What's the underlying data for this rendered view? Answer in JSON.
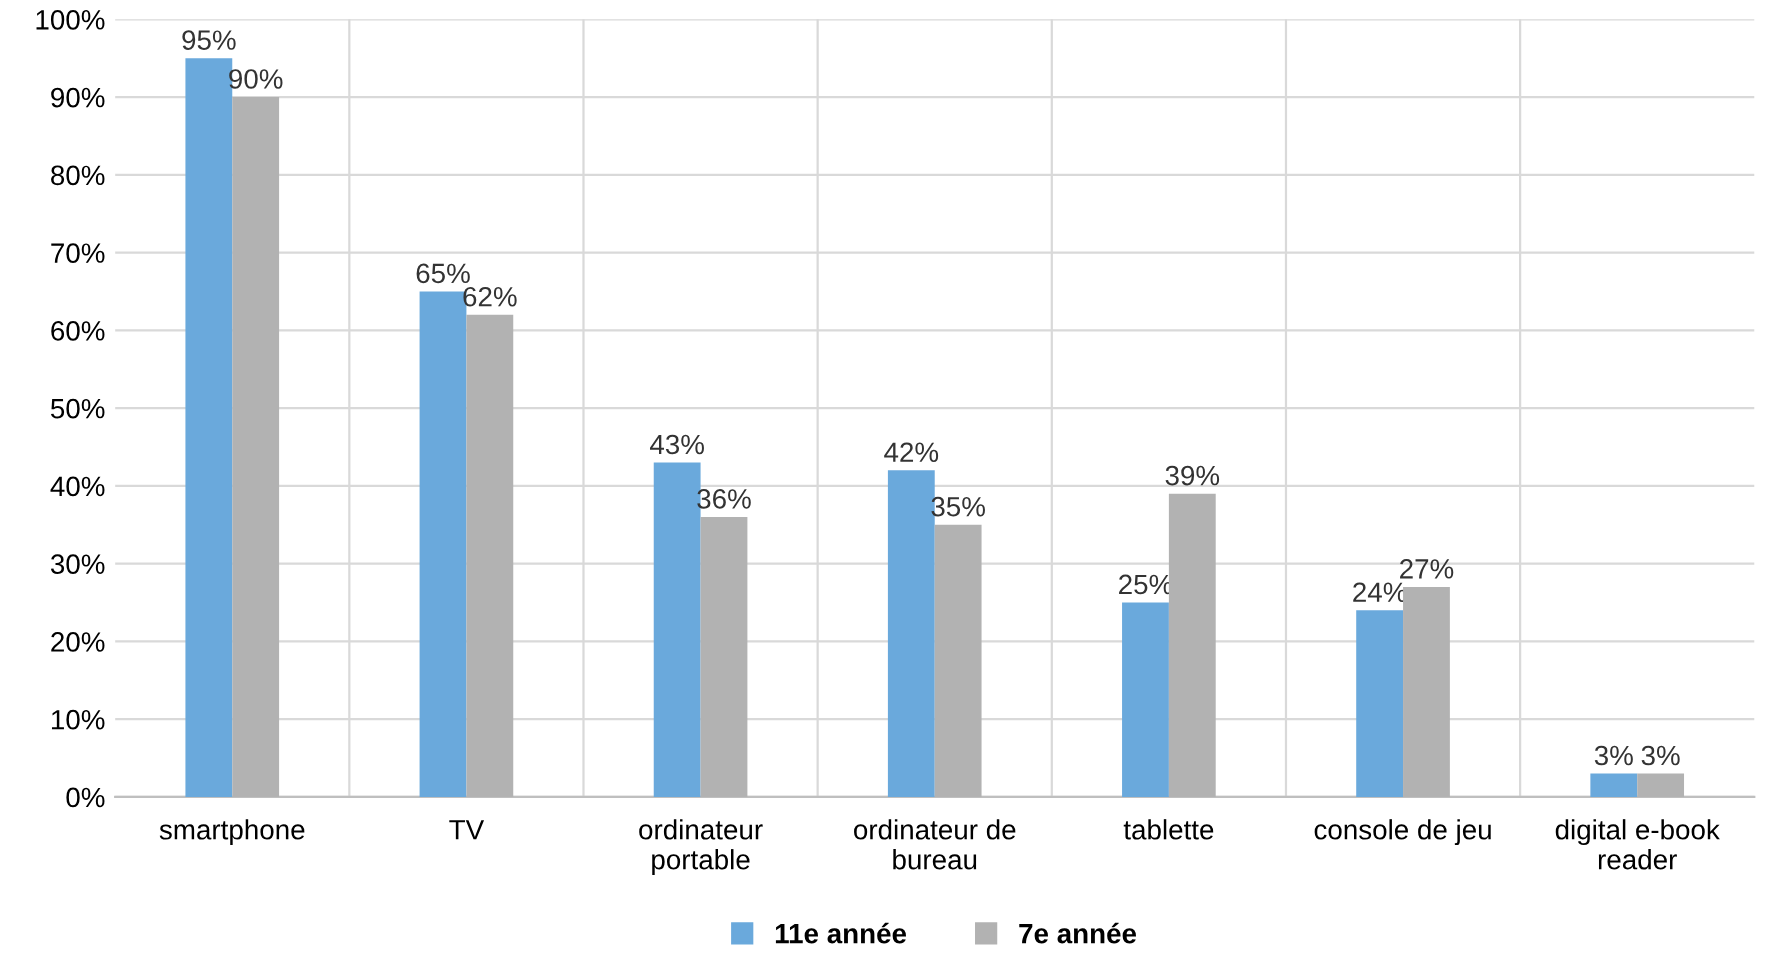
{
  "chart_data": {
    "type": "bar",
    "categories": [
      "smartphone",
      "TV",
      "ordinateur\nportable",
      "ordinateur de\nbureau",
      "tablette",
      "console de jeu",
      "digital e-book\nreader"
    ],
    "series": [
      {
        "name": "11e année",
        "color": "#6aa9dc",
        "values": [
          95,
          65,
          43,
          42,
          25,
          24,
          3
        ],
        "value_labels": [
          "95%",
          "65%",
          "43%",
          "42%",
          "25%",
          "24%",
          "3%"
        ]
      },
      {
        "name": "7e année",
        "color": "#b2b2b2",
        "values": [
          90,
          62,
          36,
          35,
          39,
          27,
          3
        ],
        "value_labels": [
          "90%",
          "62%",
          "36%",
          "35%",
          "39%",
          "27%",
          "3%"
        ]
      }
    ],
    "ylim": [
      0,
      100
    ],
    "yticks": [
      {
        "value": 0,
        "label": "0%"
      },
      {
        "value": 10,
        "label": "10%"
      },
      {
        "value": 20,
        "label": "20%"
      },
      {
        "value": 30,
        "label": "30%"
      },
      {
        "value": 40,
        "label": "40%"
      },
      {
        "value": 50,
        "label": "50%"
      },
      {
        "value": 60,
        "label": "60%"
      },
      {
        "value": 70,
        "label": "70%"
      },
      {
        "value": 80,
        "label": "80%"
      },
      {
        "value": 90,
        "label": "90%"
      },
      {
        "value": 100,
        "label": "100%"
      }
    ],
    "grid": true,
    "legend": "bottom"
  }
}
